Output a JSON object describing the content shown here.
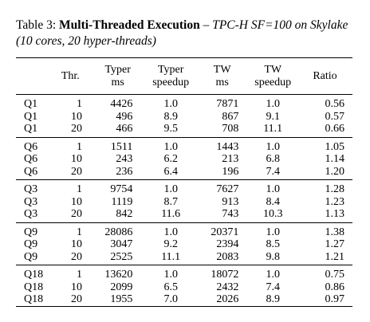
{
  "caption": {
    "label": "Table 3:",
    "title": "Multi-Threaded Execution",
    "dash": " – ",
    "subtitle": "TPC-H SF=100 on Skylake",
    "subtitle2": "(10 cores, 20 hyper-threads)"
  },
  "headers": {
    "query": "",
    "thr": "Thr.",
    "typer_ms_1": "Typer",
    "typer_ms_2": "ms",
    "typer_sp_1": "Typer",
    "typer_sp_2": "speedup",
    "tw_ms_1": "TW",
    "tw_ms_2": "ms",
    "tw_sp_1": "TW",
    "tw_sp_2": "speedup",
    "ratio": "Ratio"
  },
  "rows": [
    {
      "q": "Q1",
      "thr": "1",
      "tms": "4426",
      "tsp": "1.0",
      "twms": "7871",
      "twsp": "1.0",
      "ratio": "0.56"
    },
    {
      "q": "Q1",
      "thr": "10",
      "tms": "496",
      "tsp": "8.9",
      "twms": "867",
      "twsp": "9.1",
      "ratio": "0.57"
    },
    {
      "q": "Q1",
      "thr": "20",
      "tms": "466",
      "tsp": "9.5",
      "twms": "708",
      "twsp": "11.1",
      "ratio": "0.66"
    },
    {
      "q": "Q6",
      "thr": "1",
      "tms": "1511",
      "tsp": "1.0",
      "twms": "1443",
      "twsp": "1.0",
      "ratio": "1.05"
    },
    {
      "q": "Q6",
      "thr": "10",
      "tms": "243",
      "tsp": "6.2",
      "twms": "213",
      "twsp": "6.8",
      "ratio": "1.14"
    },
    {
      "q": "Q6",
      "thr": "20",
      "tms": "236",
      "tsp": "6.4",
      "twms": "196",
      "twsp": "7.4",
      "ratio": "1.20"
    },
    {
      "q": "Q3",
      "thr": "1",
      "tms": "9754",
      "tsp": "1.0",
      "twms": "7627",
      "twsp": "1.0",
      "ratio": "1.28"
    },
    {
      "q": "Q3",
      "thr": "10",
      "tms": "1119",
      "tsp": "8.7",
      "twms": "913",
      "twsp": "8.4",
      "ratio": "1.23"
    },
    {
      "q": "Q3",
      "thr": "20",
      "tms": "842",
      "tsp": "11.6",
      "twms": "743",
      "twsp": "10.3",
      "ratio": "1.13"
    },
    {
      "q": "Q9",
      "thr": "1",
      "tms": "28086",
      "tsp": "1.0",
      "twms": "20371",
      "twsp": "1.0",
      "ratio": "1.38"
    },
    {
      "q": "Q9",
      "thr": "10",
      "tms": "3047",
      "tsp": "9.2",
      "twms": "2394",
      "twsp": "8.5",
      "ratio": "1.27"
    },
    {
      "q": "Q9",
      "thr": "20",
      "tms": "2525",
      "tsp": "11.1",
      "twms": "2083",
      "twsp": "9.8",
      "ratio": "1.21"
    },
    {
      "q": "Q18",
      "thr": "1",
      "tms": "13620",
      "tsp": "1.0",
      "twms": "18072",
      "twsp": "1.0",
      "ratio": "0.75"
    },
    {
      "q": "Q18",
      "thr": "10",
      "tms": "2099",
      "tsp": "6.5",
      "twms": "2432",
      "twsp": "7.4",
      "ratio": "0.86"
    },
    {
      "q": "Q18",
      "thr": "20",
      "tms": "1955",
      "tsp": "7.0",
      "twms": "2026",
      "twsp": "8.9",
      "ratio": "0.97"
    }
  ]
}
